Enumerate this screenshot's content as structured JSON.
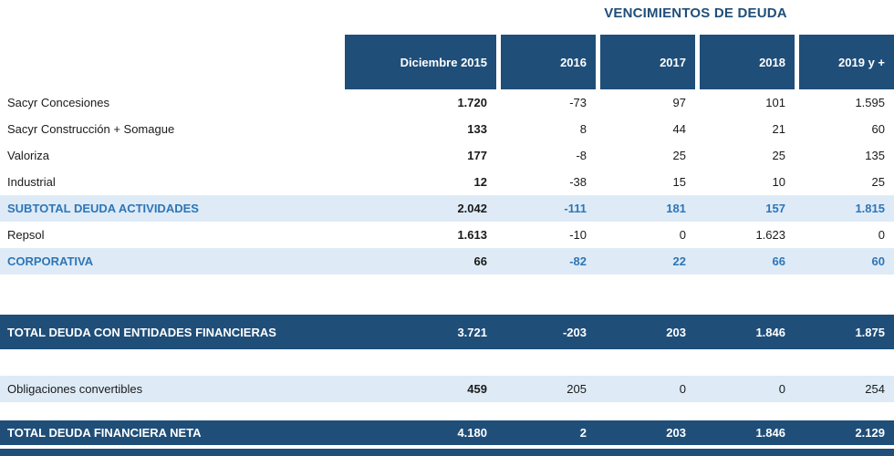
{
  "title": "VENCIMIENTOS DE DEUDA",
  "colors": {
    "dark_blue": "#1F4E79",
    "light_blue": "#DEEBF7",
    "accent_blue": "#2E75B6"
  },
  "table": {
    "columns": [
      "Diciembre 2015",
      "2016",
      "2017",
      "2018",
      "2019 y +"
    ],
    "rows": [
      {
        "label": "Sacyr Concesiones",
        "type": "normal",
        "values": [
          "1.720",
          "-73",
          "97",
          "101",
          "1.595"
        ]
      },
      {
        "label": "Sacyr Construcción + Somague",
        "type": "normal",
        "values": [
          "133",
          "8",
          "44",
          "21",
          "60"
        ]
      },
      {
        "label": "Valoriza",
        "type": "normal",
        "values": [
          "177",
          "-8",
          "25",
          "25",
          "135"
        ]
      },
      {
        "label": "Industrial",
        "type": "normal",
        "values": [
          "12",
          "-38",
          "15",
          "10",
          "25"
        ]
      },
      {
        "label": "SUBTOTAL DEUDA ACTIVIDADES",
        "type": "subtotal",
        "values": [
          "2.042",
          "-111",
          "181",
          "157",
          "1.815"
        ]
      },
      {
        "label": "Repsol",
        "type": "normal",
        "values": [
          "1.613",
          "-10",
          "0",
          "1.623",
          "0"
        ]
      },
      {
        "label": "CORPORATIVA",
        "type": "subtotal",
        "values": [
          "66",
          "-82",
          "22",
          "66",
          "60"
        ]
      },
      {
        "label": "",
        "type": "spacer",
        "size": "lg"
      },
      {
        "label": "TOTAL DEUDA CON ENTIDADES FINANCIERAS",
        "type": "total",
        "values": [
          "3.721",
          "-203",
          "203",
          "1.846",
          "1.875"
        ]
      },
      {
        "label": "",
        "type": "spacer",
        "size": "md"
      },
      {
        "label": "Obligaciones convertibles",
        "type": "highlight",
        "values": [
          "459",
          "205",
          "0",
          "0",
          "254"
        ]
      },
      {
        "label": "",
        "type": "spacer",
        "size": "sm"
      },
      {
        "label": "TOTAL DEUDA FINANCIERA NETA",
        "type": "total",
        "size": "slim",
        "values": [
          "4.180",
          "2",
          "203",
          "1.846",
          "2.129"
        ]
      }
    ]
  }
}
